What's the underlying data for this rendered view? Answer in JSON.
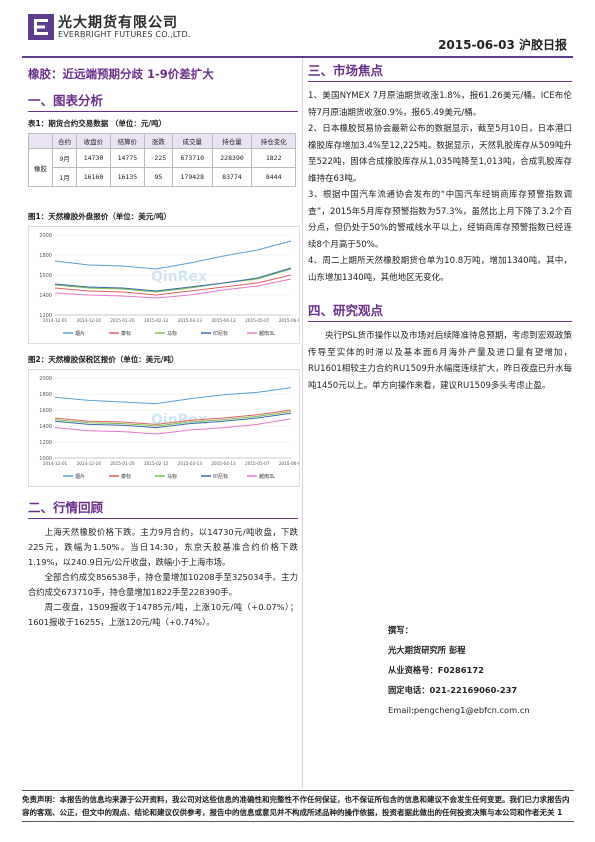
{
  "header": {
    "company_cn": "光大期货有限公司",
    "company_en": "EVERBRIGHT FUTURES CO.,LTD.",
    "date_report": "2015-06-03   沪胶日报"
  },
  "title": "橡胶：近远端预期分歧 1-9价差扩大",
  "sec1": "一、图表分析",
  "table1": {
    "caption": "表1：期货合约交易数据 （单位：元/吨）",
    "headers": [
      "合约",
      "收盘价",
      "结算价",
      "涨跌",
      "成交量",
      "持仓量",
      "持仓变化"
    ],
    "row_label": "橡胶",
    "rows": [
      [
        "9月",
        "14730",
        "14775",
        "-225",
        "673710",
        "228390",
        "1822"
      ],
      [
        "1月",
        "16160",
        "16135",
        "95",
        "179428",
        "83774",
        "8444"
      ]
    ]
  },
  "chart1": {
    "caption": "图1：天然橡胶外盘报价（单位：美元/吨）",
    "watermark": "QinRex",
    "chart_data": {
      "type": "line",
      "x": [
        "2014-12-01",
        "2014-12-24",
        "2015-01-20",
        "2015-02-12",
        "2015-03-13",
        "2015-04-13",
        "2015-05-07",
        "2015-06-01"
      ],
      "ylim": [
        1200,
        2000
      ],
      "yticks": [
        "2000",
        "1800",
        "1600",
        "1400",
        "1200"
      ],
      "series": [
        {
          "name": "烟片",
          "color": "#5aa0d8",
          "values": [
            1740,
            1700,
            1690,
            1660,
            1720,
            1790,
            1850,
            1940
          ]
        },
        {
          "name": "泰标",
          "color": "#e06060",
          "values": [
            1470,
            1440,
            1430,
            1400,
            1440,
            1480,
            1520,
            1600
          ]
        },
        {
          "name": "马标",
          "color": "#7cc04a",
          "values": [
            1500,
            1470,
            1460,
            1430,
            1470,
            1520,
            1560,
            1660
          ]
        },
        {
          "name": "印尼标",
          "color": "#3a6ab0",
          "values": [
            1510,
            1480,
            1470,
            1440,
            1480,
            1520,
            1570,
            1670
          ]
        },
        {
          "name": "越南3L",
          "color": "#e878c8",
          "values": [
            1420,
            1400,
            1390,
            1370,
            1400,
            1450,
            1490,
            1560
          ]
        }
      ]
    }
  },
  "chart2": {
    "caption": "图2：天然橡胶保税区报价（单位：美元/吨）",
    "watermark": "QinRex",
    "chart_data": {
      "type": "line",
      "x": [
        "2014-12-01",
        "2014-12-24",
        "2015-01-20",
        "2015-02-12",
        "2015-03-13",
        "2015-04-13",
        "2015-05-07",
        "2015-06-01"
      ],
      "ylim": [
        1000,
        2000
      ],
      "yticks": [
        "2000",
        "1800",
        "1600",
        "1400",
        "1200",
        "1000"
      ],
      "series": [
        {
          "name": "烟片",
          "color": "#5aa0d8",
          "values": [
            1760,
            1720,
            1700,
            1680,
            1740,
            1790,
            1820,
            1880
          ]
        },
        {
          "name": "泰标",
          "color": "#e06060",
          "values": [
            1500,
            1460,
            1450,
            1420,
            1470,
            1500,
            1540,
            1600
          ]
        },
        {
          "name": "马标",
          "color": "#7cc04a",
          "values": [
            1480,
            1440,
            1430,
            1400,
            1450,
            1480,
            1520,
            1580
          ]
        },
        {
          "name": "印尼标",
          "color": "#3a6ab0",
          "values": [
            1460,
            1420,
            1410,
            1380,
            1430,
            1460,
            1500,
            1560
          ]
        },
        {
          "name": "越南3L",
          "color": "#e878c8",
          "values": [
            1380,
            1340,
            1330,
            1300,
            1350,
            1380,
            1420,
            1490
          ]
        }
      ]
    }
  },
  "sec2": "二、行情回顾",
  "review": [
    "上海天然橡胶价格下跌。主力9月合约，以14730元/吨收盘，下跌225元，跌幅为1.50%。当日14:30，东京天胶基准合约价格下跌1.19%，以240.9日元/公斤收盘，跌幅小于上海市场。",
    "全部合约成交856538手，持仓量增加10208手至325034手。主力合约成交673710手，持仓量增加1822手至228390手。",
    "周二夜盘，1509报收于14785元/吨，上涨10元/吨（+0.07%）；1601报收于16255，上涨120元/吨（+0.74%）。"
  ],
  "sec3": "三、市场焦点",
  "focus": [
    "1、美国NYMEX 7月原油期货收涨1.8%，报61.26美元/桶。ICE布伦特7月原油期货收涨0.9%，报65.49美元/桶。",
    "2、日本橡胶贸易协会最新公布的数据显示，截至5月10日，日本港口橡胶库存增加3.4%至12,225吨。数据显示，天然乳胶库存从509吨升至522吨，固体合成橡胶库存从1,035吨降至1,013吨，合成乳胶库存维持在63吨。",
    "3、根据中国汽车流通协会发布的“中国汽车经销商库存预警指数调查”，2015年5月库存预警指数为57.3%，虽然比上月下降了3.2个百分点，但仍处于50%的警戒线水平以上，经销商库存预警指数已经连续8个月高于50%。",
    "4、周二上期所天然橡胶期货仓单为10.8万吨，增加1340吨。其中，山东增加1340吨，其他地区无变化。"
  ],
  "sec4": "四、研究观点",
  "view": "央行PSL货币操作以及市场对后续降准待息预期，考虑到宏观政策传导至实体的时滞以及基本面6月海外产量及进口量有望增加，RU1601相较主力合约RU1509升水幅度连续扩大，昨日夜盘已升水每吨1450元以上。单方向操作来看，建议RU1509多头考虑止盈。",
  "author": {
    "l1": "撰写：",
    "l2": "光大期货研究所 彭程",
    "l3": "从业资格号：F0286172",
    "l4": "固定电话：021-22169060-237",
    "l5": "Email:pengcheng1@ebfcn.com.cn"
  },
  "footer": "免责声明：本报告的信息均来源于公开资料，我公司对这些信息的准确性和完整性不作任何保证，也不保证所包含的信息和建议不会发生任何变更。我们已力求报告内容的客观、公正，但文中的观点、结论和建议仅供参考，报告中的信息或意见并不构成所述品种的操作依据，投资者据此做出的任何投资决策与本公司和作者无关 1"
}
